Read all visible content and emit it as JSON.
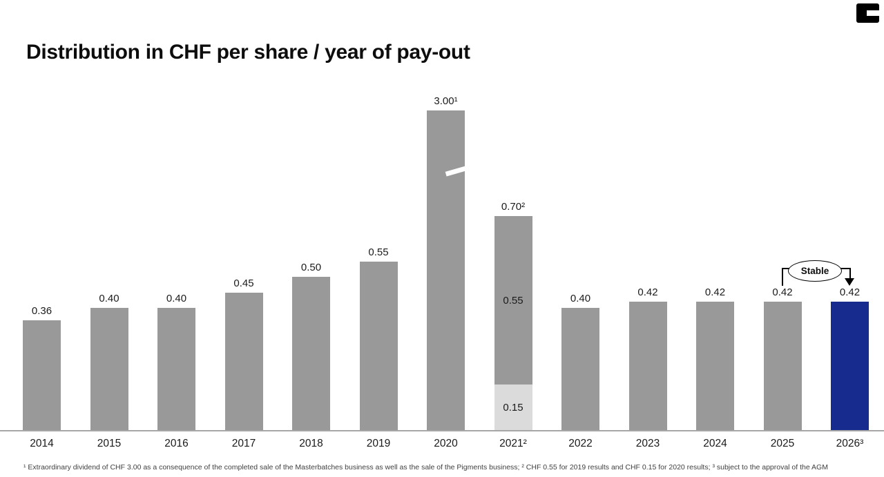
{
  "page": {
    "title": "Distribution in CHF per share / year of pay-out",
    "footnote": "¹ Extraordinary dividend of CHF 3.00 as a consequence of the completed sale of the Masterbatches business as well as the sale of the Pigments business; ² CHF 0.55 for 2019 results and CHF 0.15 for 2020 results; ³ subject to the approval of the AGM"
  },
  "colors": {
    "bar_colors": {
      "gray": "#999999",
      "light": "#dbdbdb",
      "blue": "#172a8d"
    },
    "axis_line": "#a6a6a6",
    "label_text": "#1a1a1a"
  },
  "annotation": {
    "label": "Stable",
    "from_year": "2025",
    "to_year": "2026"
  },
  "chart_data": {
    "type": "bar",
    "title": "Distribution in CHF per share / year of pay-out",
    "unit": "CHF per share",
    "xlabel": "year of pay-out",
    "grid": false,
    "legend": false,
    "categories": [
      "2014",
      "2015",
      "2016",
      "2017",
      "2018",
      "2019",
      "2020",
      "2021²",
      "2022",
      "2023",
      "2024",
      "2025",
      "2026³"
    ],
    "values": [
      0.36,
      0.4,
      0.4,
      0.45,
      0.5,
      0.55,
      3.0,
      0.7,
      0.4,
      0.42,
      0.42,
      0.42,
      0.42
    ],
    "bars": [
      {
        "year": "2014",
        "label": "0.36",
        "value": 0.36,
        "color": "gray"
      },
      {
        "year": "2015",
        "label": "0.40",
        "value": 0.4,
        "color": "gray"
      },
      {
        "year": "2016",
        "label": "0.40",
        "value": 0.4,
        "color": "gray"
      },
      {
        "year": "2017",
        "label": "0.45",
        "value": 0.45,
        "color": "gray"
      },
      {
        "year": "2018",
        "label": "0.50",
        "value": 0.5,
        "color": "gray"
      },
      {
        "year": "2019",
        "label": "0.55",
        "value": 0.55,
        "color": "gray"
      },
      {
        "year": "2020",
        "label": "3.00¹",
        "value": 3.0,
        "color": "gray",
        "display_height": 463,
        "axis_break": true
      },
      {
        "year": "2021²",
        "label": "0.70²",
        "value": 0.7,
        "segments": [
          {
            "label": "0.55",
            "value": 0.55,
            "color": "gray"
          },
          {
            "label": "0.15",
            "value": 0.15,
            "color": "light"
          }
        ]
      },
      {
        "year": "2022",
        "label": "0.40",
        "value": 0.4,
        "color": "gray"
      },
      {
        "year": "2023",
        "label": "0.42",
        "value": 0.42,
        "color": "gray"
      },
      {
        "year": "2024",
        "label": "0.42",
        "value": 0.42,
        "color": "gray"
      },
      {
        "year": "2025",
        "label": "0.42",
        "value": 0.42,
        "color": "gray"
      },
      {
        "year": "2026³",
        "label": "0.42",
        "value": 0.42,
        "color": "blue"
      }
    ]
  }
}
